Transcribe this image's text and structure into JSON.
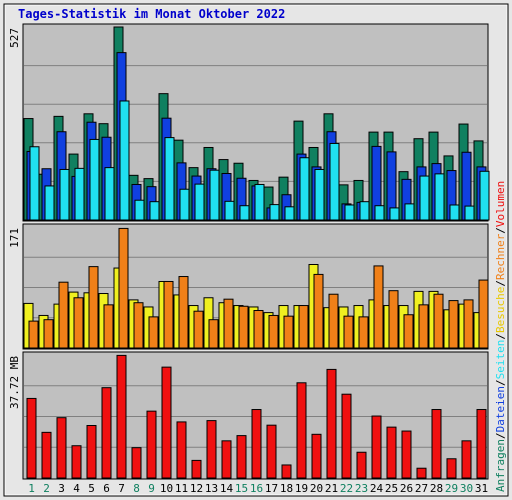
{
  "title": "Tages-Statistik im Monat Oktober 2022",
  "colors": {
    "background": "#e6e6e6",
    "plot_bg": "#c0c0c0",
    "title": "#0000cc",
    "anfragen": "#108060",
    "dateien": "#1040e0",
    "seiten": "#20e0f0",
    "besuche": "#f0f020",
    "rechner": "#f08018",
    "volumen": "#f01010",
    "weekend_label": "#108060",
    "weekday_label": "#000000"
  },
  "right_legend": {
    "top": [
      {
        "text": "Anfragen",
        "color": "#108060"
      },
      {
        "text": "/",
        "color": "#000000"
      },
      {
        "text": "Dateien",
        "color": "#1040e0"
      },
      {
        "text": "/",
        "color": "#000000"
      },
      {
        "text": "Seiten",
        "color": "#20e0f0"
      },
      {
        "text": "/",
        "color": "#000000"
      },
      {
        "text": "Besuche",
        "color": "#e8c800"
      },
      {
        "text": "/",
        "color": "#000000"
      },
      {
        "text": "Rechner",
        "color": "#f08018"
      },
      {
        "text": "/",
        "color": "#000000"
      },
      {
        "text": "Volumen",
        "color": "#f01010"
      }
    ]
  },
  "chart_data": [
    {
      "type": "bar",
      "panel": "hits",
      "scale_label": "527",
      "ylim": [
        0,
        527
      ],
      "categories": [
        "1",
        "2",
        "3",
        "4",
        "5",
        "6",
        "7",
        "8",
        "9",
        "10",
        "11",
        "12",
        "13",
        "14",
        "15",
        "16",
        "17",
        "18",
        "19",
        "20",
        "21",
        "22",
        "23",
        "24",
        "25",
        "26",
        "27",
        "28",
        "29",
        "30",
        "31"
      ],
      "weekend_days": [
        "1",
        "2",
        "8",
        "9",
        "15",
        "16",
        "22",
        "23",
        "29",
        "30"
      ],
      "series": [
        {
          "name": "Anfragen",
          "values": [
            277,
            125,
            283,
            180,
            290,
            263,
            527,
            122,
            113,
            345,
            218,
            143,
            198,
            165,
            155,
            108,
            90,
            117,
            270,
            198,
            290,
            96,
            108,
            240,
            240,
            132,
            222,
            240,
            175,
            262,
            216
          ]
        },
        {
          "name": "Dateien",
          "values": [
            187,
            140,
            241,
            119,
            267,
            226,
            457,
            97,
            91,
            278,
            156,
            120,
            140,
            127,
            114,
            93,
            33,
            69,
            180,
            145,
            241,
            44,
            48,
            201,
            186,
            111,
            145,
            154,
            135,
            185,
            145
          ]
        },
        {
          "name": "Seiten",
          "values": [
            200,
            93,
            138,
            141,
            220,
            143,
            325,
            54,
            50,
            225,
            84,
            98,
            136,
            51,
            39,
            97,
            42,
            36,
            170,
            138,
            209,
            41,
            50,
            39,
            33,
            44,
            120,
            126,
            41,
            38,
            133
          ]
        }
      ]
    },
    {
      "type": "bar",
      "panel": "visits",
      "scale_label": "171",
      "ylim": [
        0,
        171
      ],
      "categories": [
        "1",
        "2",
        "3",
        "4",
        "5",
        "6",
        "7",
        "8",
        "9",
        "10",
        "11",
        "12",
        "13",
        "14",
        "15",
        "16",
        "17",
        "18",
        "19",
        "20",
        "21",
        "22",
        "23",
        "24",
        "25",
        "26",
        "27",
        "28",
        "29",
        "30",
        "31"
      ],
      "series": [
        {
          "name": "Besuche",
          "values": [
            63,
            46,
            62,
            79,
            78,
            77,
            113,
            68,
            58,
            94,
            75,
            60,
            71,
            64,
            60,
            58,
            50,
            60,
            60,
            118,
            57,
            58,
            60,
            68,
            60,
            60,
            80,
            80,
            54,
            62,
            50
          ]
        },
        {
          "name": "Rechner",
          "values": [
            38,
            40,
            93,
            71,
            115,
            61,
            169,
            64,
            44,
            94,
            101,
            52,
            40,
            69,
            59,
            53,
            46,
            45,
            60,
            104,
            76,
            45,
            44,
            116,
            81,
            47,
            61,
            76,
            67,
            68,
            96
          ]
        }
      ]
    },
    {
      "type": "bar",
      "panel": "volume",
      "scale_label": "37.72 MB",
      "ylim": [
        0,
        37.72
      ],
      "categories": [
        "1",
        "2",
        "3",
        "4",
        "5",
        "6",
        "7",
        "8",
        "9",
        "10",
        "11",
        "12",
        "13",
        "14",
        "15",
        "16",
        "17",
        "18",
        "19",
        "20",
        "21",
        "22",
        "23",
        "24",
        "25",
        "26",
        "27",
        "28",
        "29",
        "30",
        "31"
      ],
      "series": [
        {
          "name": "Volumen",
          "values": [
            24.4,
            14.0,
            18.5,
            9.9,
            16.1,
            27.7,
            37.6,
            9.3,
            20.5,
            34.0,
            17.2,
            5.4,
            17.6,
            11.4,
            13.0,
            21.0,
            16.2,
            4.0,
            29.2,
            13.4,
            33.3,
            25.7,
            7.9,
            19.0,
            15.6,
            14.4,
            3.0,
            21.0,
            5.9,
            11.4,
            21.0
          ]
        }
      ]
    }
  ]
}
